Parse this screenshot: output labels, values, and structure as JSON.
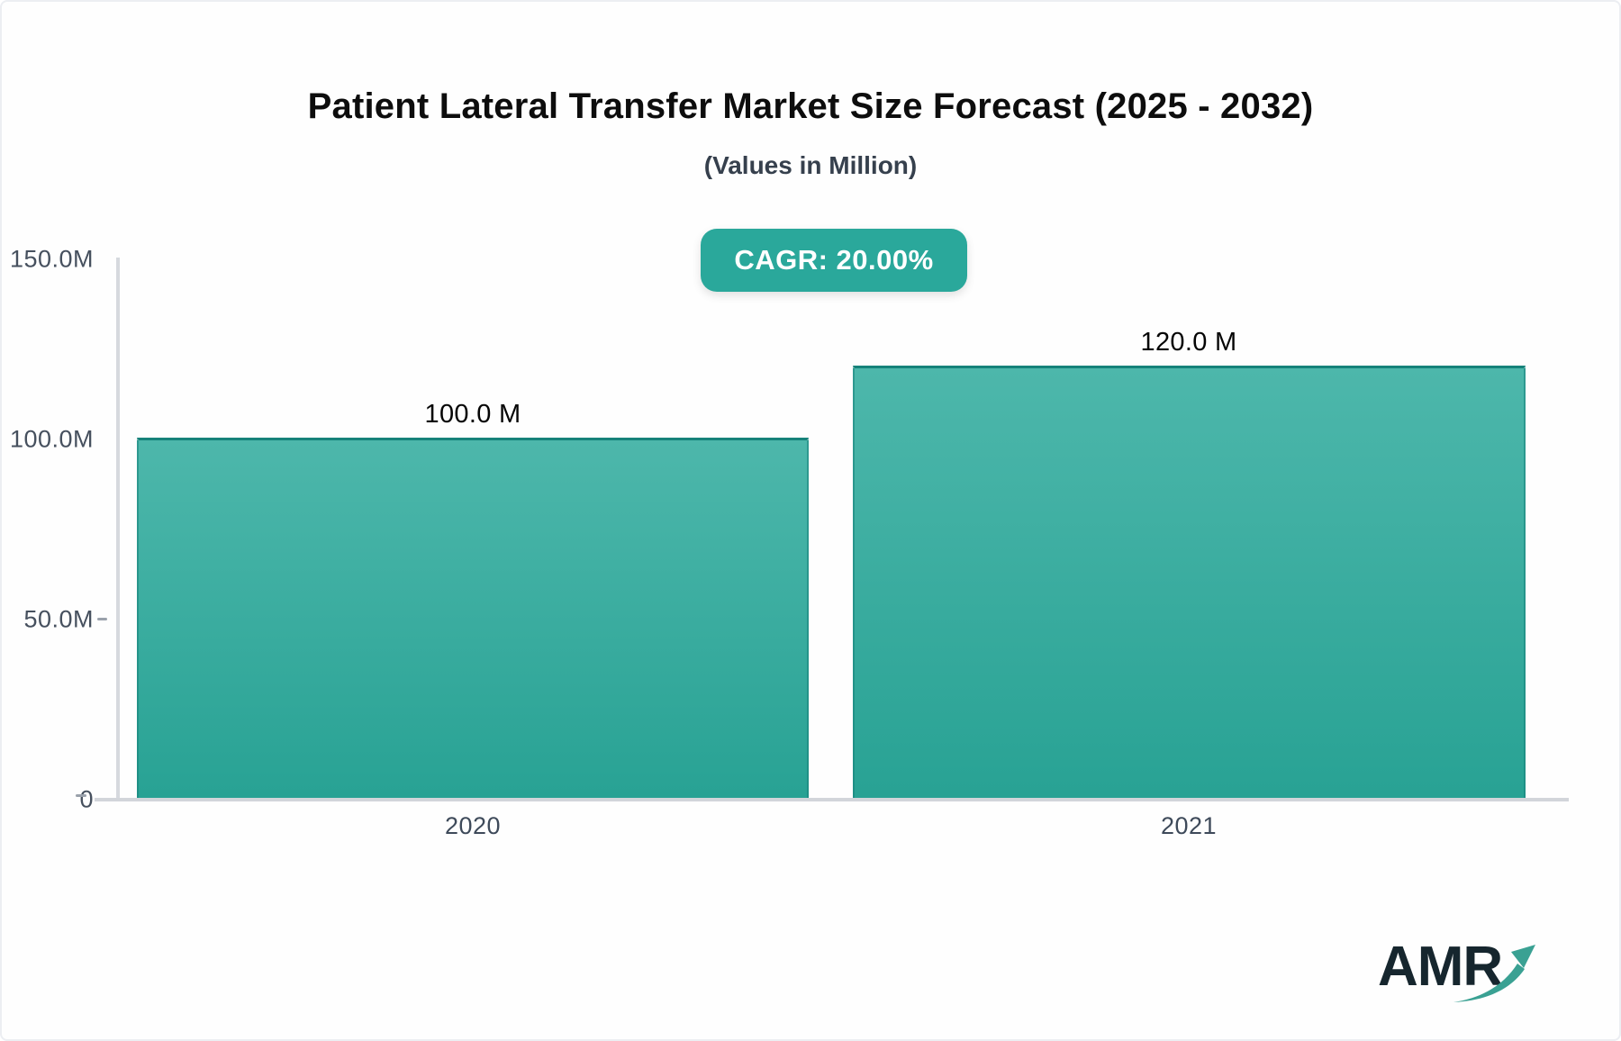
{
  "header": {
    "title": "Patient Lateral Transfer Market Size Forecast (2025 - 2032)",
    "subtitle": "(Values in Million)"
  },
  "cagr_badge": {
    "label": "CAGR: 20.00%",
    "background": "#2aa89b"
  },
  "chart_data": {
    "type": "bar",
    "title": "Patient Lateral Transfer Market Size Forecast (2025 - 2032)",
    "subtitle": "(Values in Million)",
    "unit": "Million",
    "cagr": "20.00%",
    "categories": [
      "2020",
      "2021"
    ],
    "values": [
      100.0,
      120.0
    ],
    "value_labels": [
      "100.0 M",
      "120.0 M"
    ],
    "ylim": [
      0,
      150
    ],
    "ytick_labels": [
      "150.0M",
      "100.0M",
      "50.0M",
      "0"
    ],
    "ytick_values": [
      150,
      100,
      50,
      0
    ],
    "grid": false,
    "legend": "none",
    "bar_color_top": "#4db7ab",
    "bar_color_bottom": "#28a294",
    "axis_color": "#d2d5da"
  },
  "branding": {
    "logo_text": "AMR",
    "logo_arrow_color": "#3aa193",
    "logo_text_color": "#16262e"
  }
}
